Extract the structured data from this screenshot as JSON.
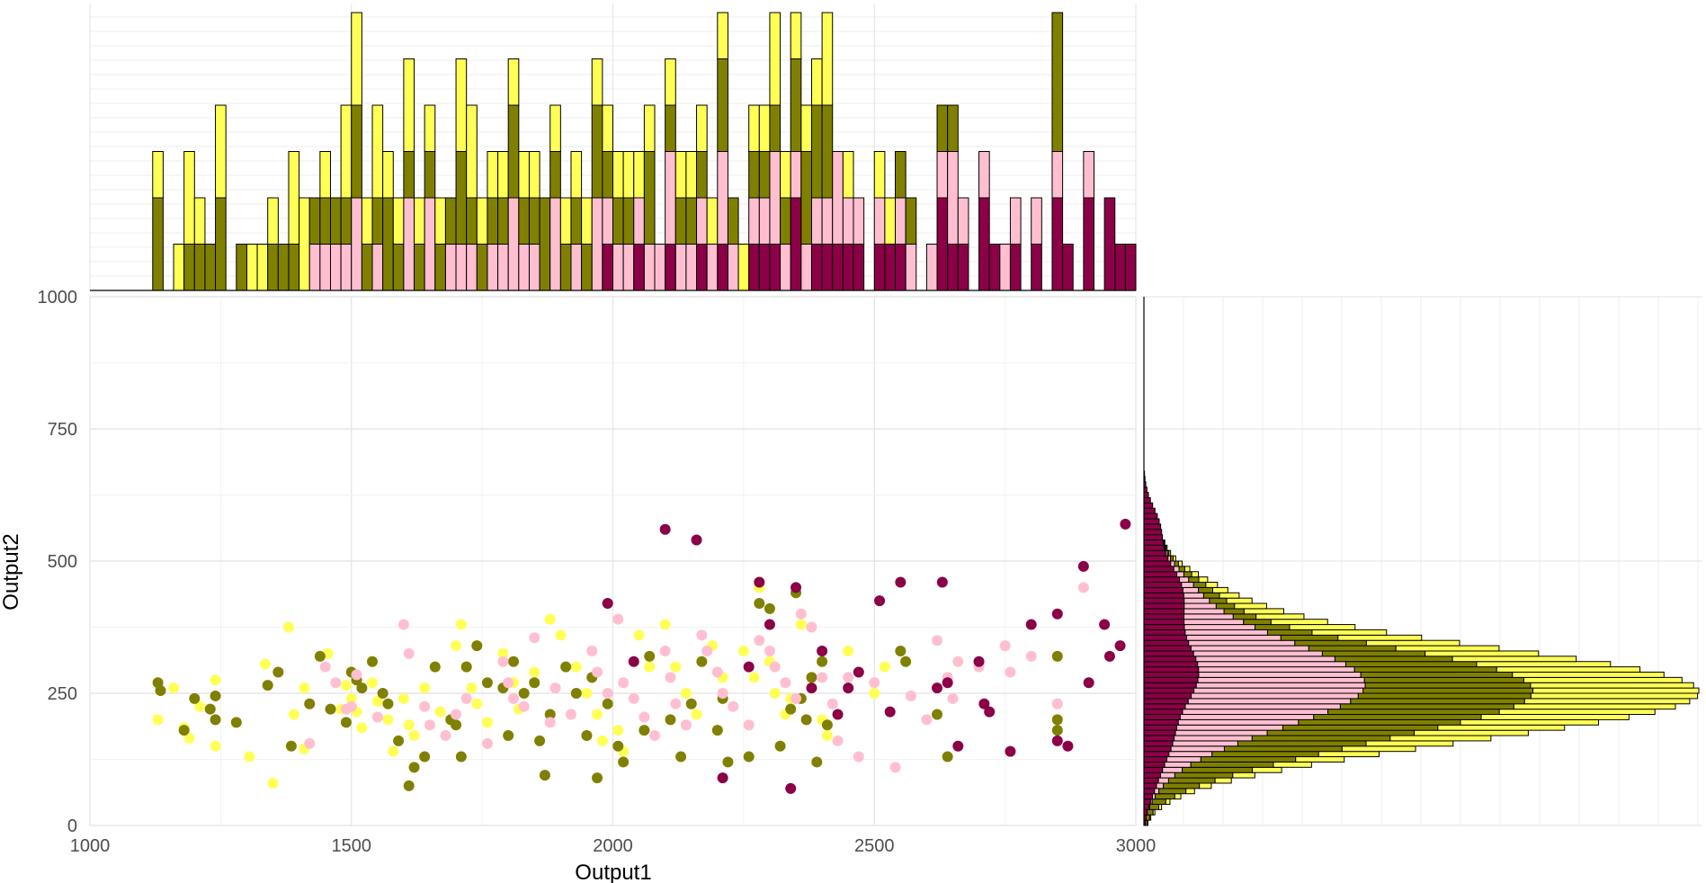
{
  "chart_data": {
    "type": "scatter",
    "xlabel": "Output1",
    "ylabel": "Output2",
    "xlim": [
      1000,
      3000
    ],
    "ylim": [
      0,
      1000
    ],
    "x_ticks": [
      "1000",
      "1500",
      "2000",
      "2500",
      "3000"
    ],
    "y_ticks": [
      "0",
      "250",
      "500",
      "750",
      "1000"
    ],
    "grid": true,
    "legend": "none",
    "series_colors": [
      "#ffff55",
      "#808000",
      "#ffbfd0",
      "#8b0046"
    ],
    "scatter_points": [
      [
        [
          1130,
          200
        ],
        [
          1160,
          260
        ],
        [
          1180,
          185
        ],
        [
          1190,
          165
        ],
        [
          1210,
          225
        ],
        [
          1240,
          275
        ],
        [
          1240,
          150
        ],
        [
          1305,
          130
        ],
        [
          1335,
          305
        ],
        [
          1350,
          80
        ],
        [
          1380,
          375
        ],
        [
          1390,
          210
        ],
        [
          1410,
          260
        ],
        [
          1410,
          145
        ],
        [
          1455,
          325
        ],
        [
          1480,
          220
        ],
        [
          1490,
          265
        ],
        [
          1500,
          240
        ],
        [
          1510,
          215
        ],
        [
          1520,
          185
        ],
        [
          1540,
          270
        ],
        [
          1550,
          235
        ],
        [
          1570,
          200
        ],
        [
          1580,
          140
        ],
        [
          1600,
          240
        ],
        [
          1610,
          190
        ],
        [
          1620,
          170
        ],
        [
          1640,
          260
        ],
        [
          1670,
          215
        ],
        [
          1700,
          340
        ],
        [
          1710,
          380
        ],
        [
          1720,
          300
        ],
        [
          1730,
          260
        ],
        [
          1740,
          230
        ],
        [
          1760,
          195
        ],
        [
          1790,
          325
        ],
        [
          1810,
          270
        ],
        [
          1820,
          220
        ],
        [
          1850,
          290
        ],
        [
          1880,
          390
        ],
        [
          1900,
          360
        ],
        [
          1930,
          300
        ],
        [
          1950,
          250
        ],
        [
          1970,
          210
        ],
        [
          1980,
          160
        ],
        [
          2010,
          180
        ],
        [
          2020,
          140
        ],
        [
          2050,
          360
        ],
        [
          2070,
          300
        ],
        [
          2100,
          380
        ],
        [
          2120,
          300
        ],
        [
          2140,
          250
        ],
        [
          2160,
          210
        ],
        [
          2190,
          340
        ],
        [
          2210,
          280
        ],
        [
          2250,
          330
        ],
        [
          2270,
          280
        ],
        [
          2280,
          450
        ],
        [
          2300,
          310
        ],
        [
          2310,
          250
        ],
        [
          2330,
          210
        ],
        [
          2340,
          240
        ],
        [
          2360,
          380
        ],
        [
          2380,
          280
        ],
        [
          2400,
          200
        ],
        [
          2410,
          170
        ],
        [
          2450,
          330
        ],
        [
          2500,
          250
        ],
        [
          2520,
          300
        ]
      ],
      [
        [
          1130,
          270
        ],
        [
          1135,
          255
        ],
        [
          1180,
          180
        ],
        [
          1200,
          240
        ],
        [
          1230,
          220
        ],
        [
          1240,
          245
        ],
        [
          1240,
          200
        ],
        [
          1280,
          195
        ],
        [
          1340,
          265
        ],
        [
          1360,
          290
        ],
        [
          1385,
          150
        ],
        [
          1420,
          230
        ],
        [
          1440,
          320
        ],
        [
          1460,
          220
        ],
        [
          1490,
          195
        ],
        [
          1500,
          290
        ],
        [
          1510,
          275
        ],
        [
          1520,
          260
        ],
        [
          1540,
          310
        ],
        [
          1560,
          250
        ],
        [
          1570,
          230
        ],
        [
          1590,
          160
        ],
        [
          1610,
          75
        ],
        [
          1620,
          110
        ],
        [
          1640,
          130
        ],
        [
          1660,
          300
        ],
        [
          1690,
          200
        ],
        [
          1700,
          190
        ],
        [
          1710,
          130
        ],
        [
          1720,
          300
        ],
        [
          1740,
          340
        ],
        [
          1760,
          270
        ],
        [
          1790,
          260
        ],
        [
          1800,
          170
        ],
        [
          1810,
          310
        ],
        [
          1830,
          250
        ],
        [
          1850,
          270
        ],
        [
          1860,
          160
        ],
        [
          1870,
          95
        ],
        [
          1880,
          210
        ],
        [
          1910,
          300
        ],
        [
          1930,
          250
        ],
        [
          1950,
          170
        ],
        [
          1960,
          280
        ],
        [
          1970,
          90
        ],
        [
          1990,
          230
        ],
        [
          2010,
          150
        ],
        [
          2020,
          120
        ],
        [
          2060,
          180
        ],
        [
          2070,
          320
        ],
        [
          2110,
          200
        ],
        [
          2130,
          130
        ],
        [
          2150,
          230
        ],
        [
          2170,
          310
        ],
        [
          2200,
          180
        ],
        [
          2210,
          240
        ],
        [
          2220,
          120
        ],
        [
          2260,
          130
        ],
        [
          2280,
          420
        ],
        [
          2300,
          410
        ],
        [
          2320,
          150
        ],
        [
          2340,
          220
        ],
        [
          2350,
          440
        ],
        [
          2360,
          240
        ],
        [
          2370,
          200
        ],
        [
          2380,
          280
        ],
        [
          2390,
          120
        ],
        [
          2400,
          310
        ],
        [
          2410,
          190
        ],
        [
          2550,
          330
        ],
        [
          2560,
          310
        ],
        [
          2620,
          210
        ],
        [
          2640,
          130
        ],
        [
          2850,
          320
        ],
        [
          2850,
          200
        ],
        [
          2850,
          180
        ]
      ],
      [
        [
          1420,
          155
        ],
        [
          1450,
          300
        ],
        [
          1470,
          270
        ],
        [
          1490,
          220
        ],
        [
          1500,
          225
        ],
        [
          1510,
          285
        ],
        [
          1550,
          205
        ],
        [
          1600,
          380
        ],
        [
          1610,
          325
        ],
        [
          1640,
          225
        ],
        [
          1650,
          190
        ],
        [
          1680,
          170
        ],
        [
          1700,
          210
        ],
        [
          1720,
          240
        ],
        [
          1760,
          155
        ],
        [
          1790,
          310
        ],
        [
          1800,
          270
        ],
        [
          1810,
          240
        ],
        [
          1830,
          225
        ],
        [
          1850,
          355
        ],
        [
          1880,
          195
        ],
        [
          1890,
          260
        ],
        [
          1920,
          210
        ],
        [
          1960,
          330
        ],
        [
          1970,
          290
        ],
        [
          1990,
          250
        ],
        [
          2010,
          390
        ],
        [
          2020,
          270
        ],
        [
          2040,
          240
        ],
        [
          2060,
          205
        ],
        [
          2080,
          170
        ],
        [
          2100,
          330
        ],
        [
          2110,
          280
        ],
        [
          2120,
          230
        ],
        [
          2140,
          190
        ],
        [
          2170,
          360
        ],
        [
          2180,
          330
        ],
        [
          2200,
          290
        ],
        [
          2210,
          250
        ],
        [
          2230,
          225
        ],
        [
          2260,
          190
        ],
        [
          2280,
          350
        ],
        [
          2300,
          330
        ],
        [
          2310,
          300
        ],
        [
          2330,
          270
        ],
        [
          2350,
          240
        ],
        [
          2360,
          400
        ],
        [
          2380,
          375
        ],
        [
          2400,
          280
        ],
        [
          2420,
          230
        ],
        [
          2430,
          160
        ],
        [
          2450,
          280
        ],
        [
          2470,
          130
        ],
        [
          2500,
          270
        ],
        [
          2540,
          110
        ],
        [
          2570,
          245
        ],
        [
          2600,
          200
        ],
        [
          2620,
          350
        ],
        [
          2640,
          280
        ],
        [
          2650,
          240
        ],
        [
          2660,
          310
        ],
        [
          2700,
          300
        ],
        [
          2750,
          340
        ],
        [
          2760,
          290
        ],
        [
          2800,
          320
        ],
        [
          2850,
          230
        ],
        [
          2900,
          450
        ]
      ],
      [
        [
          1990,
          420
        ],
        [
          2040,
          310
        ],
        [
          2100,
          560
        ],
        [
          2160,
          540
        ],
        [
          2210,
          90
        ],
        [
          2260,
          300
        ],
        [
          2280,
          460
        ],
        [
          2300,
          380
        ],
        [
          2340,
          70
        ],
        [
          2350,
          450
        ],
        [
          2380,
          260
        ],
        [
          2400,
          330
        ],
        [
          2430,
          210
        ],
        [
          2450,
          260
        ],
        [
          2470,
          290
        ],
        [
          2510,
          425
        ],
        [
          2530,
          215
        ],
        [
          2550,
          460
        ],
        [
          2620,
          260
        ],
        [
          2630,
          460
        ],
        [
          2640,
          270
        ],
        [
          2660,
          150
        ],
        [
          2700,
          310
        ],
        [
          2710,
          230
        ],
        [
          2720,
          215
        ],
        [
          2760,
          140
        ],
        [
          2800,
          380
        ],
        [
          2850,
          400
        ],
        [
          2850,
          160
        ],
        [
          2870,
          150
        ],
        [
          2900,
          490
        ],
        [
          2910,
          270
        ],
        [
          2940,
          380
        ],
        [
          2950,
          320
        ],
        [
          2970,
          340
        ],
        [
          2980,
          570
        ]
      ]
    ],
    "top_histogram": {
      "bin_start": 1000,
      "bin_width": 10,
      "stacked_counts_bottom_to_top": [
        [
          0,
          0,
          0,
          0,
          0,
          0,
          0,
          0,
          0,
          0,
          0,
          0,
          0,
          0,
          0,
          0,
          0,
          0,
          0,
          0,
          0,
          0,
          0,
          0,
          0,
          0,
          0,
          0,
          0,
          0,
          0,
          0,
          0,
          0,
          0,
          0,
          0,
          0,
          0,
          0,
          0,
          0,
          0,
          0,
          0,
          0,
          0,
          0,
          0,
          0,
          0,
          0,
          0,
          0,
          0,
          0,
          0,
          0,
          0,
          0,
          0,
          0,
          0,
          0,
          0,
          0,
          0,
          0,
          0,
          0,
          0,
          0,
          0,
          0,
          0,
          0,
          0,
          0,
          0,
          0,
          0,
          0,
          0,
          0,
          0,
          0,
          0,
          0,
          0,
          0,
          0,
          0,
          0,
          0,
          0,
          0,
          0,
          0,
          0,
          0,
          0,
          0,
          0,
          0,
          0,
          0,
          0,
          0,
          0,
          0,
          0,
          0,
          0,
          0,
          0,
          0,
          0,
          0,
          0,
          0,
          0,
          0,
          0,
          0,
          0,
          0,
          0,
          0,
          0,
          0,
          0,
          0,
          0,
          0,
          0,
          0,
          0,
          0,
          0,
          0,
          0,
          0,
          0,
          0,
          0,
          0,
          0,
          0,
          0,
          0,
          0,
          0,
          0,
          0,
          0,
          0,
          0,
          0,
          0,
          0,
          0,
          0,
          0,
          0,
          0,
          0,
          0,
          0,
          0,
          0,
          0,
          0,
          0,
          0,
          0,
          0,
          0,
          0,
          0,
          0,
          0,
          0,
          0,
          0,
          0,
          0,
          0,
          0,
          0,
          0,
          0,
          0,
          0,
          0,
          0,
          0,
          0,
          0,
          0,
          0
        ],
        [
          0
        ],
        [
          0
        ],
        [
          0
        ]
      ],
      "note_values": "see bars"
    }
  }
}
